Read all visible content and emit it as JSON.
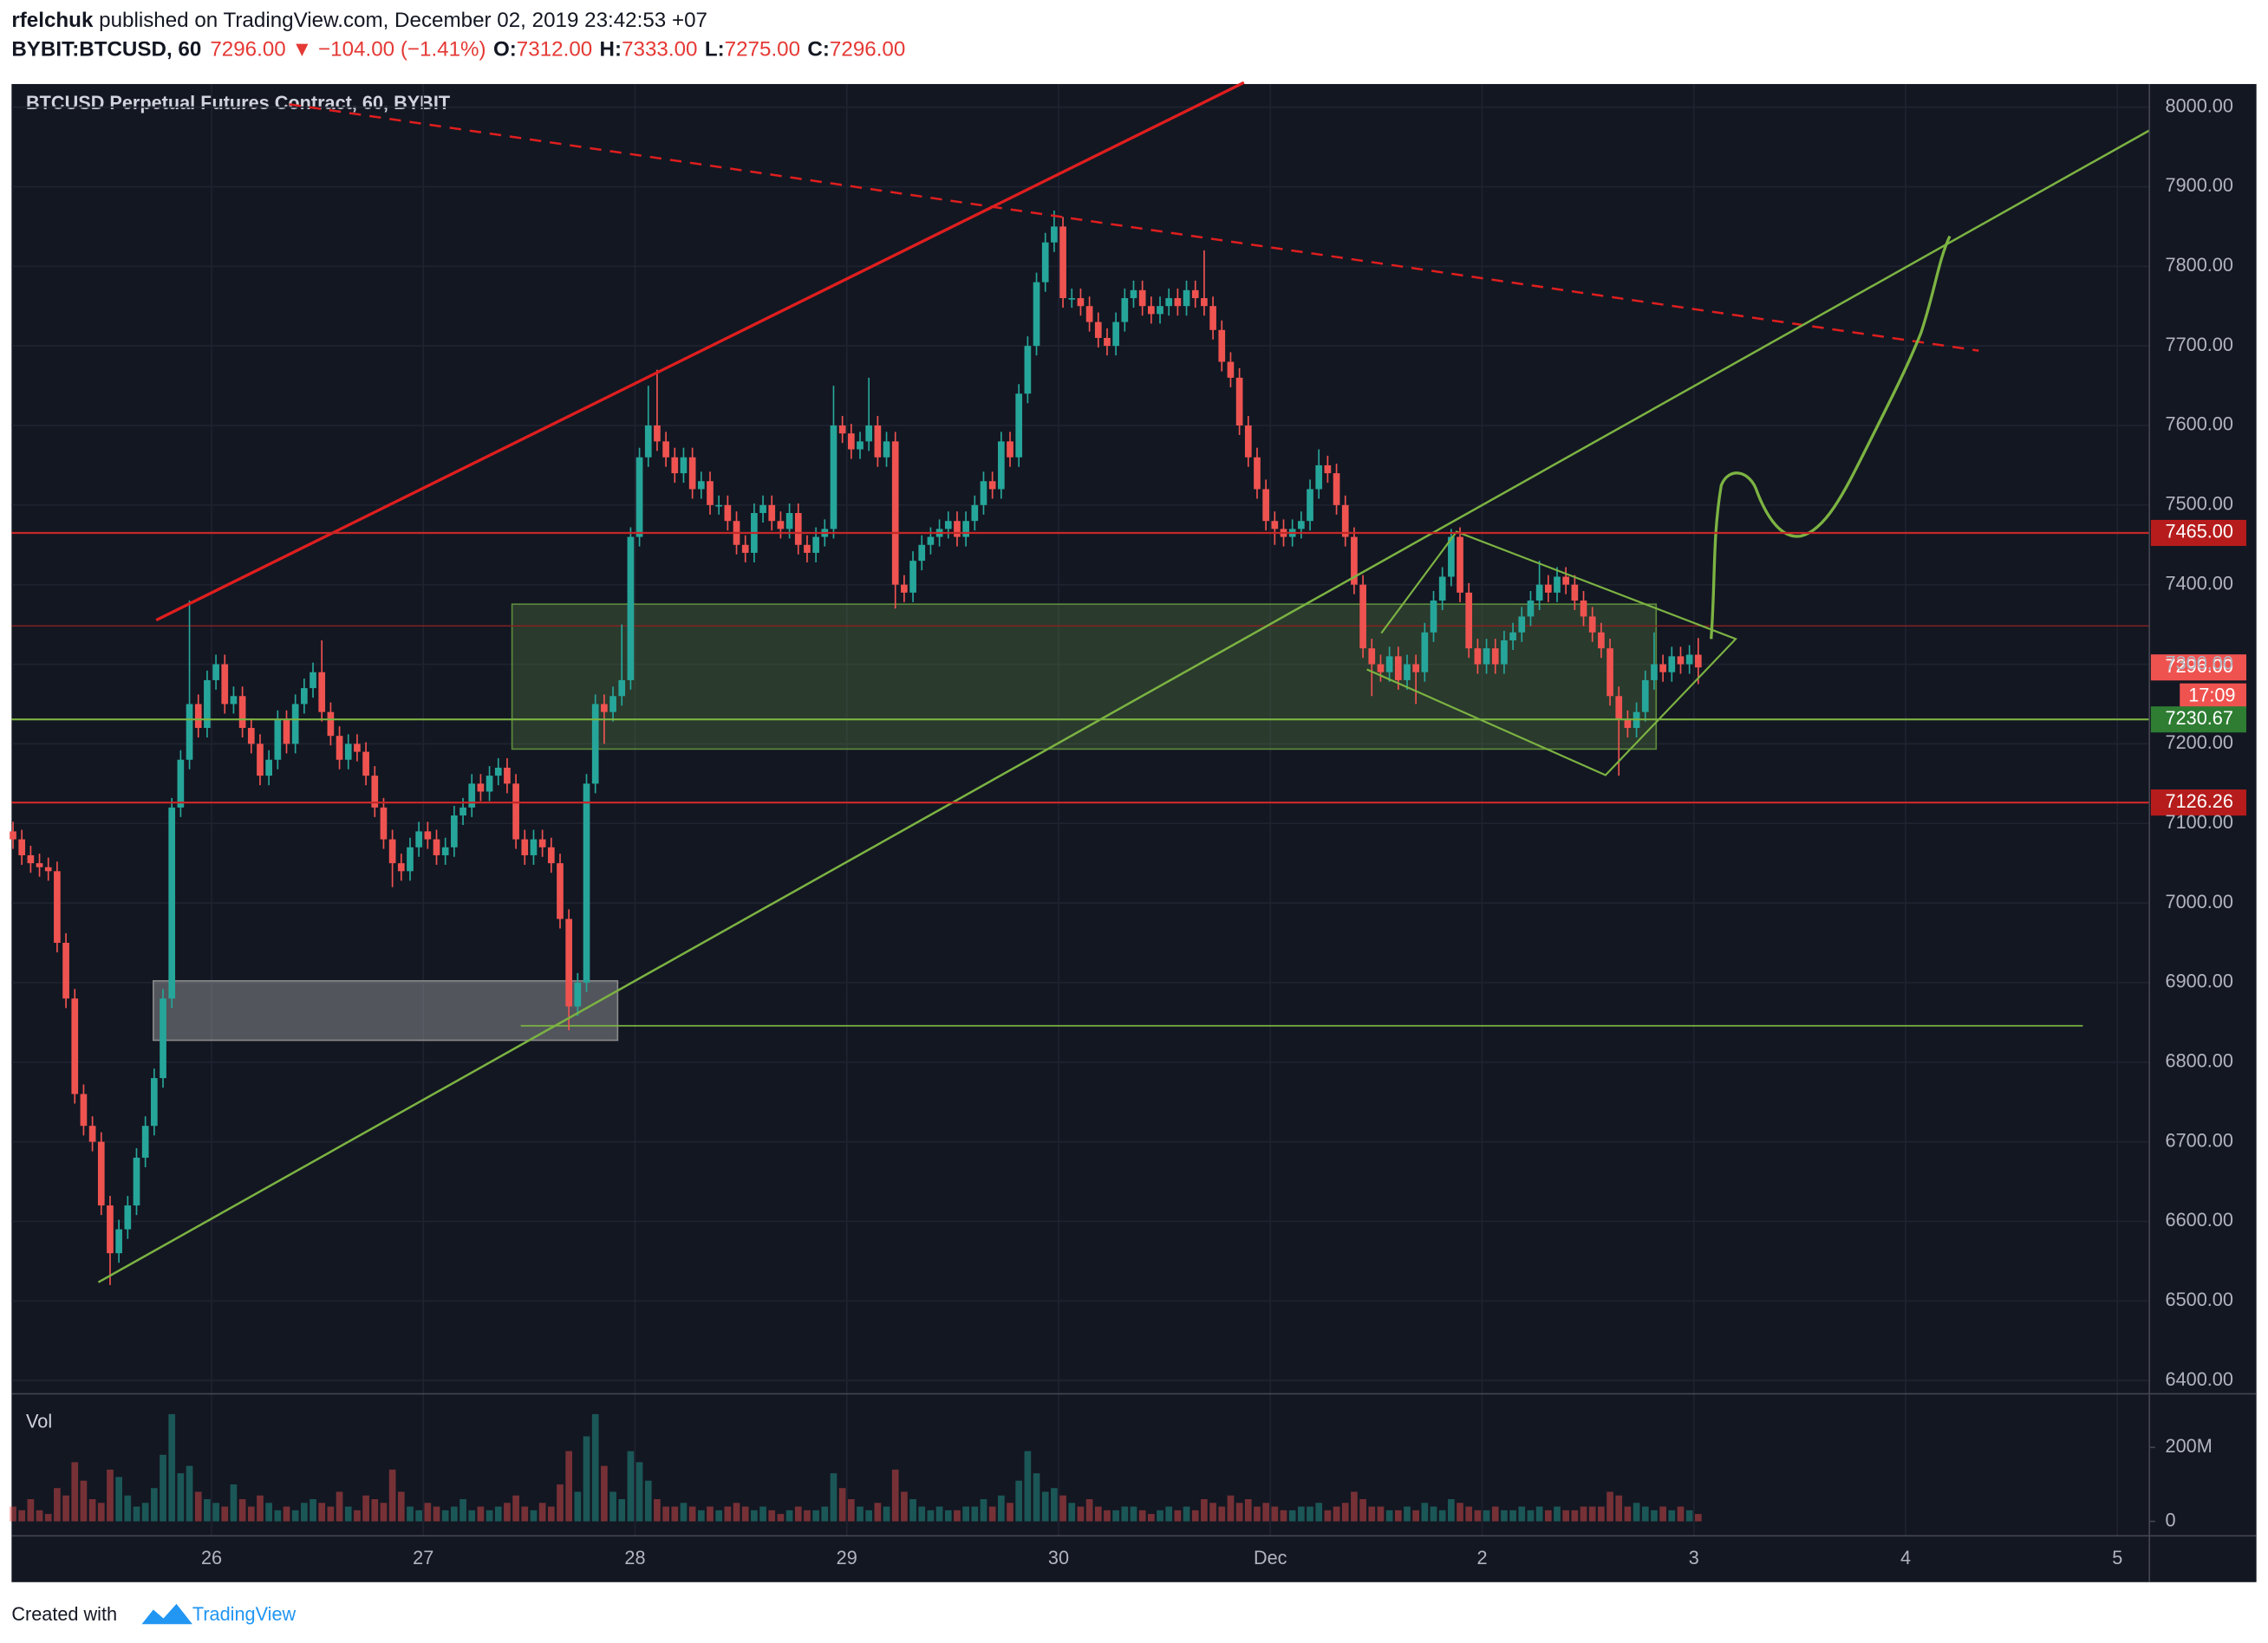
{
  "header": {
    "author": "rfelchuk",
    "published": " published on TradingView.com, December 02, 2019 23:42:53 +07",
    "symbol": "BYBIT:BTCUSD, 60",
    "last": "7296.00",
    "change": "▼ −104.00 (−1.41%)",
    "ohlc": [
      {
        "key": "O:",
        "value": "7312.00"
      },
      {
        "key": "H:",
        "value": "7333.00"
      },
      {
        "key": "L:",
        "value": "7275.00"
      },
      {
        "key": "C:",
        "value": "7296.00"
      }
    ]
  },
  "footer": {
    "created": "Created with",
    "brand": "TradingView"
  },
  "chart_data": {
    "type": "candlestick",
    "title": "BTCUSD Perpetual Futures Contract, 60, BYBIT",
    "volume_label": "Vol",
    "up_color": "#26a69a",
    "down_color": "#ef5350",
    "grid": true,
    "open": [
      7090,
      7080,
      7060,
      7050,
      7045,
      7040,
      6950,
      6880,
      6760,
      6720,
      6700,
      6620,
      6560,
      6590,
      6620,
      6680,
      6720,
      6780,
      6880,
      7120,
      7180,
      7250,
      7220,
      7280,
      7300,
      7250,
      7260,
      7220,
      7200,
      7160,
      7180,
      7230,
      7200,
      7250,
      7270,
      7290,
      7240,
      7210,
      7180,
      7200,
      7190,
      7160,
      7120,
      7080,
      7050,
      7040,
      7070,
      7090,
      7080,
      7060,
      7070,
      7110,
      7120,
      7150,
      7140,
      7160,
      7170,
      7150,
      7080,
      7060,
      7080,
      7070,
      7050,
      6980,
      6870,
      6900,
      7150,
      7250,
      7240,
      7260,
      7280,
      7460,
      7560,
      7600,
      7580,
      7560,
      7540,
      7560,
      7520,
      7530,
      7500,
      7500,
      7480,
      7450,
      7440,
      7490,
      7500,
      7480,
      7470,
      7490,
      7450,
      7440,
      7460,
      7470,
      7600,
      7590,
      7570,
      7580,
      7600,
      7560,
      7580,
      7400,
      7390,
      7430,
      7450,
      7460,
      7470,
      7480,
      7460,
      7480,
      7500,
      7530,
      7520,
      7580,
      7560,
      7640,
      7700,
      7780,
      7830,
      7850,
      7760,
      7760,
      7750,
      7730,
      7710,
      7700,
      7730,
      7760,
      7770,
      7750,
      7740,
      7750,
      7760,
      7750,
      7770,
      7760,
      7750,
      7720,
      7680,
      7660,
      7600,
      7560,
      7520,
      7480,
      7470,
      7460,
      7470,
      7480,
      7520,
      7550,
      7540,
      7500,
      7460,
      7400,
      7320,
      7300,
      7290,
      7310,
      7280,
      7300,
      7290,
      7340,
      7380,
      7410,
      7460,
      7390,
      7320,
      7300,
      7320,
      7300,
      7330,
      7340,
      7360,
      7380,
      7400,
      7390,
      7410,
      7400,
      7380,
      7360,
      7340,
      7320,
      7260,
      7230,
      7220,
      7240,
      7280,
      7300,
      7290,
      7310,
      7300,
      7312
    ],
    "high": [
      7102,
      7092,
      7072,
      7062,
      7057,
      7052,
      6962,
      6892,
      6772,
      6732,
      6712,
      6632,
      6602,
      6632,
      6692,
      6732,
      6792,
      6892,
      7132,
      7192,
      7380,
      7262,
      7292,
      7312,
      7312,
      7272,
      7272,
      7232,
      7212,
      7192,
      7242,
      7242,
      7262,
      7282,
      7302,
      7330,
      7252,
      7222,
      7212,
      7212,
      7202,
      7172,
      7132,
      7092,
      7062,
      7082,
      7102,
      7102,
      7092,
      7082,
      7122,
      7132,
      7162,
      7162,
      7172,
      7182,
      7182,
      7162,
      7092,
      7092,
      7092,
      7082,
      7062,
      6992,
      6912,
      7162,
      7262,
      7262,
      7272,
      7350,
      7472,
      7572,
      7650,
      7670,
      7592,
      7572,
      7572,
      7572,
      7542,
      7542,
      7512,
      7512,
      7492,
      7462,
      7502,
      7512,
      7512,
      7492,
      7502,
      7502,
      7462,
      7472,
      7482,
      7650,
      7612,
      7602,
      7592,
      7660,
      7612,
      7592,
      7592,
      7412,
      7442,
      7462,
      7472,
      7482,
      7492,
      7492,
      7492,
      7512,
      7542,
      7542,
      7592,
      7592,
      7652,
      7712,
      7792,
      7842,
      7870,
      7862,
      7772,
      7772,
      7762,
      7742,
      7722,
      7742,
      7772,
      7782,
      7782,
      7762,
      7762,
      7772,
      7772,
      7782,
      7782,
      7820,
      7762,
      7732,
      7692,
      7672,
      7612,
      7572,
      7532,
      7492,
      7482,
      7482,
      7492,
      7532,
      7570,
      7562,
      7552,
      7512,
      7472,
      7412,
      7332,
      7312,
      7322,
      7322,
      7312,
      7312,
      7352,
      7392,
      7422,
      7470,
      7472,
      7402,
      7332,
      7332,
      7332,
      7342,
      7352,
      7372,
      7392,
      7430,
      7412,
      7422,
      7422,
      7412,
      7392,
      7372,
      7352,
      7332,
      7272,
      7242,
      7252,
      7292,
      7340,
      7312,
      7322,
      7322,
      7324,
      7333
    ],
    "low": [
      7068,
      7048,
      7038,
      7033,
      7028,
      6938,
      6868,
      6748,
      6708,
      6688,
      6608,
      6520,
      6548,
      6578,
      6608,
      6668,
      6708,
      6768,
      6868,
      7108,
      7168,
      7208,
      7208,
      7268,
      7238,
      7238,
      7208,
      7188,
      7148,
      7148,
      7168,
      7188,
      7188,
      7238,
      7258,
      7228,
      7198,
      7168,
      7168,
      7178,
      7148,
      7108,
      7068,
      7020,
      7028,
      7028,
      7058,
      7068,
      7048,
      7048,
      7058,
      7098,
      7108,
      7128,
      7128,
      7148,
      7138,
      7068,
      7048,
      7048,
      7058,
      7038,
      6968,
      6840,
      6858,
      6888,
      7138,
      7200,
      7228,
      7248,
      7268,
      7448,
      7548,
      7568,
      7548,
      7528,
      7528,
      7508,
      7508,
      7488,
      7488,
      7468,
      7438,
      7428,
      7428,
      7478,
      7468,
      7458,
      7458,
      7438,
      7428,
      7428,
      7448,
      7458,
      7578,
      7558,
      7558,
      7568,
      7548,
      7548,
      7370,
      7378,
      7378,
      7418,
      7438,
      7448,
      7458,
      7448,
      7448,
      7468,
      7488,
      7508,
      7508,
      7548,
      7548,
      7628,
      7688,
      7768,
      7818,
      7748,
      7748,
      7738,
      7718,
      7698,
      7688,
      7688,
      7718,
      7748,
      7738,
      7728,
      7728,
      7738,
      7738,
      7738,
      7748,
      7738,
      7708,
      7668,
      7648,
      7588,
      7548,
      7508,
      7468,
      7450,
      7448,
      7448,
      7458,
      7468,
      7508,
      7528,
      7488,
      7448,
      7388,
      7308,
      7260,
      7278,
      7278,
      7268,
      7268,
      7250,
      7278,
      7328,
      7368,
      7398,
      7378,
      7308,
      7288,
      7288,
      7288,
      7288,
      7318,
      7328,
      7348,
      7368,
      7378,
      7378,
      7388,
      7368,
      7348,
      7328,
      7308,
      7248,
      7160,
      7208,
      7208,
      7228,
      7268,
      7278,
      7278,
      7288,
      7288,
      7275
    ],
    "close": [
      7080,
      7060,
      7050,
      7045,
      7040,
      6950,
      6880,
      6760,
      6720,
      6700,
      6620,
      6560,
      6590,
      6620,
      6680,
      6720,
      6780,
      6880,
      7120,
      7180,
      7250,
      7220,
      7280,
      7300,
      7250,
      7260,
      7220,
      7200,
      7160,
      7180,
      7230,
      7200,
      7250,
      7270,
      7290,
      7240,
      7210,
      7180,
      7200,
      7190,
      7160,
      7120,
      7080,
      7050,
      7040,
      7070,
      7090,
      7080,
      7060,
      7070,
      7110,
      7120,
      7150,
      7140,
      7160,
      7170,
      7150,
      7080,
      7060,
      7080,
      7070,
      7050,
      6980,
      6870,
      6900,
      7150,
      7250,
      7240,
      7260,
      7280,
      7460,
      7560,
      7600,
      7580,
      7560,
      7540,
      7560,
      7520,
      7530,
      7500,
      7500,
      7480,
      7450,
      7440,
      7490,
      7500,
      7480,
      7470,
      7490,
      7450,
      7440,
      7460,
      7470,
      7600,
      7590,
      7570,
      7580,
      7600,
      7560,
      7580,
      7400,
      7390,
      7430,
      7450,
      7460,
      7470,
      7480,
      7460,
      7480,
      7500,
      7530,
      7520,
      7580,
      7560,
      7640,
      7700,
      7780,
      7830,
      7850,
      7760,
      7760,
      7750,
      7730,
      7710,
      7700,
      7730,
      7760,
      7770,
      7750,
      7740,
      7750,
      7760,
      7750,
      7770,
      7760,
      7750,
      7720,
      7680,
      7660,
      7600,
      7560,
      7520,
      7480,
      7470,
      7460,
      7470,
      7480,
      7520,
      7550,
      7540,
      7500,
      7460,
      7400,
      7320,
      7300,
      7290,
      7310,
      7280,
      7300,
      7290,
      7340,
      7380,
      7410,
      7460,
      7390,
      7320,
      7300,
      7320,
      7300,
      7330,
      7340,
      7360,
      7380,
      7400,
      7390,
      7410,
      7400,
      7380,
      7360,
      7340,
      7320,
      7260,
      7230,
      7220,
      7240,
      7280,
      7300,
      7290,
      7310,
      7300,
      7312,
      7296
    ],
    "volume": [
      40,
      30,
      60,
      30,
      20,
      90,
      70,
      160,
      110,
      60,
      50,
      140,
      120,
      70,
      40,
      50,
      90,
      180,
      290,
      130,
      150,
      80,
      60,
      50,
      40,
      100,
      60,
      40,
      70,
      50,
      30,
      40,
      30,
      50,
      60,
      50,
      40,
      80,
      40,
      30,
      70,
      60,
      50,
      140,
      80,
      40,
      30,
      50,
      40,
      30,
      40,
      60,
      30,
      40,
      30,
      40,
      50,
      70,
      40,
      30,
      50,
      40,
      100,
      190,
      80,
      230,
      290,
      150,
      80,
      60,
      190,
      160,
      110,
      60,
      40,
      40,
      50,
      40,
      30,
      40,
      30,
      40,
      50,
      40,
      30,
      40,
      30,
      20,
      30,
      40,
      30,
      30,
      40,
      130,
      90,
      60,
      40,
      30,
      50,
      40,
      140,
      80,
      60,
      40,
      30,
      40,
      30,
      30,
      40,
      40,
      60,
      40,
      70,
      50,
      110,
      190,
      130,
      80,
      90,
      70,
      50,
      40,
      60,
      40,
      30,
      30,
      40,
      40,
      30,
      20,
      30,
      40,
      30,
      40,
      30,
      60,
      50,
      40,
      70,
      50,
      60,
      40,
      50,
      40,
      30,
      30,
      40,
      40,
      50,
      30,
      40,
      50,
      80,
      60,
      40,
      40,
      30,
      30,
      40,
      30,
      50,
      40,
      30,
      60,
      50,
      40,
      30,
      30,
      40,
      30,
      30,
      40,
      30,
      40,
      30,
      40,
      30,
      30,
      40,
      40,
      40,
      80,
      70,
      40,
      50,
      40,
      30,
      40,
      30,
      40,
      30,
      20
    ],
    "ylim": [
      6387,
      8029
    ],
    "yticks": [
      {
        "value": 6400,
        "label": "6400.00"
      },
      {
        "value": 6500,
        "label": "6500.00"
      },
      {
        "value": 6600,
        "label": "6600.00"
      },
      {
        "value": 6700,
        "label": "6700.00"
      },
      {
        "value": 6800,
        "label": "6800.00"
      },
      {
        "value": 6900,
        "label": "6900.00"
      },
      {
        "value": 7000,
        "label": "7000.00"
      },
      {
        "value": 7100,
        "label": "7100.00"
      },
      {
        "value": 7200,
        "label": "7200.00"
      },
      {
        "value": 7300,
        "label": "7300.00"
      },
      {
        "value": 7400,
        "label": "7400.00"
      },
      {
        "value": 7500,
        "label": "7500.00"
      },
      {
        "value": 7600,
        "label": "7600.00"
      },
      {
        "value": 7700,
        "label": "7700.00"
      },
      {
        "value": 7800,
        "label": "7800.00"
      },
      {
        "value": 7900,
        "label": "7900.00"
      },
      {
        "value": 8000,
        "label": "8000.00"
      }
    ],
    "vol_ylim": [
      -39,
      341
    ],
    "vol_yticks": [
      0,
      {
        "value": 200,
        "label": "200M"
      }
    ],
    "xticks": [
      {
        "value": 22.5,
        "label": "26"
      },
      {
        "value": 46.5,
        "label": "27"
      },
      {
        "value": 70.5,
        "label": "28"
      },
      {
        "value": 94.5,
        "label": "29"
      },
      {
        "value": 118.5,
        "label": "30"
      },
      {
        "value": 142.5,
        "label": "Dec"
      },
      {
        "value": 166.5,
        "label": "2"
      },
      {
        "value": 190.5,
        "label": "3"
      },
      {
        "value": 214.5,
        "label": "4"
      },
      {
        "value": 238.5,
        "label": "5"
      }
    ],
    "price_labels": [
      {
        "value": 7465,
        "label": "7465.00",
        "color": "#b71c1c"
      },
      {
        "value": 7296,
        "label": "7296.00",
        "color": "#ef5350"
      },
      {
        "value": 7230.67,
        "label": "7230.67",
        "color": "#2e7d32"
      },
      {
        "value": 7126.26,
        "label": "7126.26",
        "color": "#b71c1c"
      }
    ],
    "countdown": "17:09"
  }
}
